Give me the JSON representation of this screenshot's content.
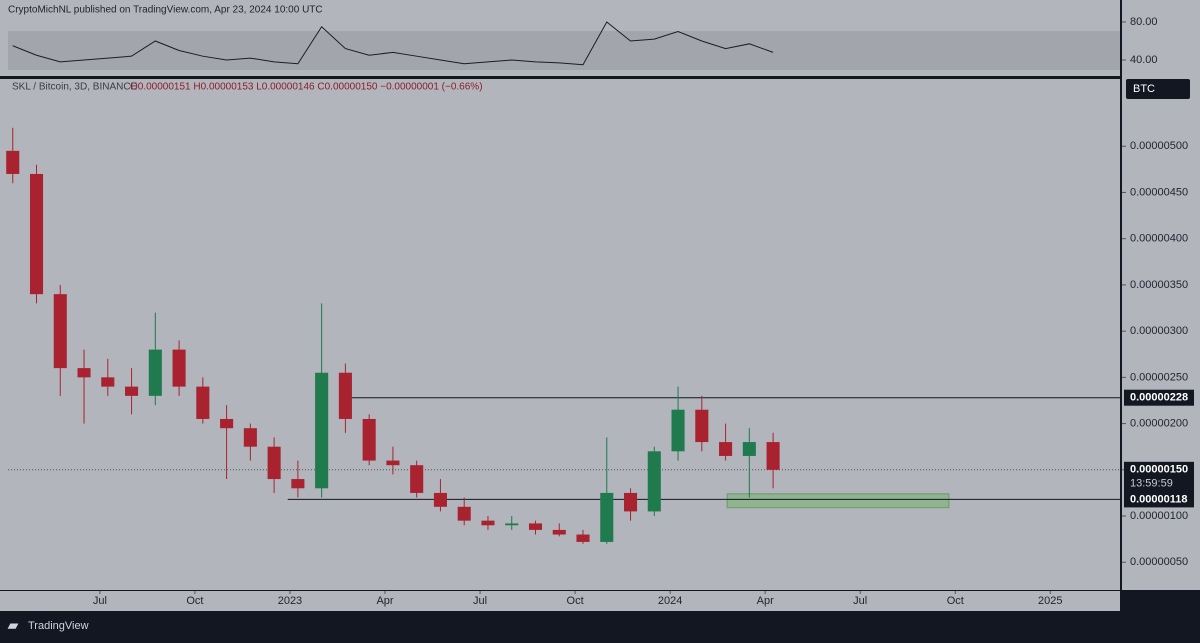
{
  "header": {
    "publisher": "CryptoMichNL published on TradingView.com, Apr 23, 2024 10:00 UTC",
    "symbol": "SKL / Bitcoin, 3D, BINANCE",
    "ohlc": "O0.00000151 H0.00000153 L0.00000146 C0.00000150 −0.00000001 (−0.66%)",
    "currency": "BTC",
    "footer": "TradingView"
  },
  "chart_data": [
    {
      "type": "candlestick",
      "x": [
        -2.75,
        -2,
        -1.25,
        -0.5,
        0.25,
        1,
        1.75,
        2.5,
        3.25,
        4,
        4.75,
        5.5,
        6.25,
        7,
        7.75,
        8.5,
        9.25,
        10,
        10.75,
        11.5,
        12.25,
        13,
        13.75,
        14.5,
        15.25,
        16,
        16.75,
        17.5,
        18.25,
        19,
        19.75,
        20.5,
        21.25
      ],
      "open": [
        4.95e-06,
        4.7e-06,
        3.4e-06,
        2.6e-06,
        2.5e-06,
        2.4e-06,
        2.3e-06,
        2.8e-06,
        2.4e-06,
        2.05e-06,
        1.95e-06,
        1.75e-06,
        1.4e-06,
        1.3e-06,
        2.55e-06,
        2.05e-06,
        1.6e-06,
        1.55e-06,
        1.25e-06,
        1.1e-06,
        9.5e-07,
        9e-07,
        9.2e-07,
        8.5e-07,
        8e-07,
        7.2e-07,
        1.25e-06,
        1.05e-06,
        1.7e-06,
        2.15e-06,
        1.8e-06,
        1.65e-06,
        1.8e-06
      ],
      "high": [
        5.2e-06,
        4.8e-06,
        3.5e-06,
        2.8e-06,
        2.7e-06,
        2.6e-06,
        3.2e-06,
        2.9e-06,
        2.5e-06,
        2.2e-06,
        2e-06,
        1.85e-06,
        1.6e-06,
        3.3e-06,
        2.65e-06,
        2.1e-06,
        1.75e-06,
        1.6e-06,
        1.4e-06,
        1.2e-06,
        1e-06,
        1e-06,
        9.5e-07,
        9.2e-07,
        8.5e-07,
        1.85e-06,
        1.3e-06,
        1.75e-06,
        2.4e-06,
        2.3e-06,
        2e-06,
        1.95e-06,
        1.9e-06
      ],
      "low": [
        4.6e-06,
        3.3e-06,
        2.3e-06,
        2e-06,
        2.3e-06,
        2.1e-06,
        2.2e-06,
        2.3e-06,
        2e-06,
        1.4e-06,
        1.6e-06,
        1.25e-06,
        1.2e-06,
        1.2e-06,
        1.9e-06,
        1.55e-06,
        1.45e-06,
        1.2e-06,
        1.05e-06,
        9e-07,
        8.5e-07,
        8.5e-07,
        8e-07,
        7.8e-07,
        7e-07,
        7e-07,
        9.5e-07,
        1e-06,
        1.6e-06,
        1.7e-06,
        1.6e-06,
        1.2e-06,
        1.3e-06
      ],
      "close": [
        4.7e-06,
        3.4e-06,
        2.6e-06,
        2.5e-06,
        2.4e-06,
        2.3e-06,
        2.8e-06,
        2.4e-06,
        2.05e-06,
        1.95e-06,
        1.75e-06,
        1.4e-06,
        1.3e-06,
        2.55e-06,
        2.05e-06,
        1.6e-06,
        1.55e-06,
        1.25e-06,
        1.1e-06,
        9.5e-07,
        9e-07,
        9.2e-07,
        8.5e-07,
        8e-07,
        7.2e-07,
        1.25e-06,
        1.05e-06,
        1.7e-06,
        2.15e-06,
        1.8e-06,
        1.65e-06,
        1.8e-06,
        1.5e-06
      ],
      "up_color": "#1f7a4d",
      "down_color": "#a8232f",
      "xlim": [
        -2.9,
        32.2
      ],
      "xticks": [
        {
          "value": 0,
          "label": "Jul"
        },
        {
          "value": 3,
          "label": "Oct"
        },
        {
          "value": 6,
          "label": "2023"
        },
        {
          "value": 9,
          "label": "Apr"
        },
        {
          "value": 12,
          "label": "Jul"
        },
        {
          "value": 15,
          "label": "Oct"
        },
        {
          "value": 18,
          "label": "2024"
        },
        {
          "value": 21,
          "label": "Apr"
        },
        {
          "value": 24,
          "label": "Jul"
        },
        {
          "value": 27,
          "label": "Oct"
        },
        {
          "value": 30,
          "label": "2025"
        }
      ],
      "ylim": [
        2e-07,
        5.5e-06
      ],
      "yticks": [
        {
          "value": 5e-07,
          "label": "0.00000050"
        },
        {
          "value": 1e-06,
          "label": "0.00000100"
        },
        {
          "value": 1.5e-06,
          "label": "0.00000150"
        },
        {
          "value": 2e-06,
          "label": "0.00000200"
        },
        {
          "value": 2.5e-06,
          "label": "0.00000250"
        },
        {
          "value": 3e-06,
          "label": "0.00000300"
        },
        {
          "value": 3.5e-06,
          "label": "0.00000350"
        },
        {
          "value": 4e-06,
          "label": "0.00000400"
        },
        {
          "value": 4.5e-06,
          "label": "0.00000450"
        },
        {
          "value": 5e-06,
          "label": "0.00000500"
        }
      ],
      "levels": [
        {
          "value": 2.28e-06,
          "label": "0.00000228",
          "start": 7.76
        },
        {
          "value": 1.18e-06,
          "label": "0.00000118",
          "start": 5.93
        }
      ],
      "last_price": {
        "value": 1.5e-06,
        "label": "0.00000150",
        "countdown": "13:59:59"
      },
      "zone": {
        "x": [
          19.8,
          26.8
        ],
        "y": [
          1.09e-06,
          1.24e-06
        ],
        "color": "#8fb48f"
      }
    },
    {
      "type": "line",
      "x": [
        -2.75,
        -2,
        -1.25,
        -0.5,
        0.25,
        1,
        1.75,
        2.5,
        3.25,
        4,
        4.75,
        5.5,
        6.25,
        7,
        7.75,
        8.5,
        9.25,
        10,
        10.75,
        11.5,
        12.25,
        13,
        13.75,
        14.5,
        15.25,
        16,
        16.75,
        17.5,
        18.25,
        19,
        19.75,
        20.5,
        21.25
      ],
      "values": [
        55,
        45,
        38,
        40,
        42,
        44,
        60,
        50,
        44,
        40,
        42,
        38,
        36,
        75,
        52,
        45,
        48,
        44,
        40,
        36,
        38,
        40,
        38,
        37,
        35,
        80,
        60,
        62,
        70,
        60,
        52,
        57,
        48
      ],
      "color": "#1b1d24",
      "xlim": [
        -2.9,
        32.2
      ],
      "ylim": [
        24.2,
        94.7
      ],
      "yticks": [
        {
          "value": 40,
          "label": "40.00"
        },
        {
          "value": 80,
          "label": "80.00"
        }
      ]
    }
  ]
}
